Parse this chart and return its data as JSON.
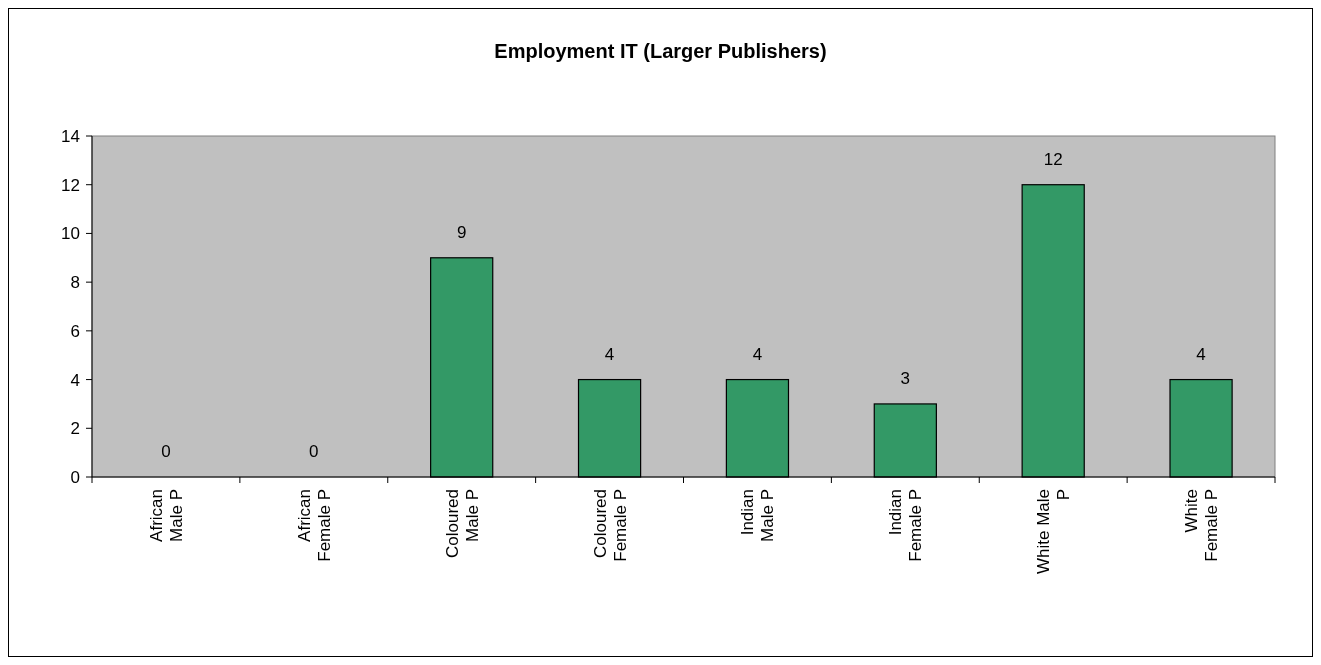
{
  "chart_data": {
    "type": "bar",
    "title": "Employment IT (Larger Publishers)",
    "categories": [
      "African Male P",
      "African Female P",
      "Coloured Male P",
      "Coloured Female P",
      "Indian Male P",
      "Indian Female P",
      "White Male P",
      "White Female P"
    ],
    "values": [
      0,
      0,
      9,
      4,
      4,
      3,
      12,
      4
    ],
    "color": "#339966",
    "ylim": [
      0,
      14
    ],
    "yticks": [
      0,
      2,
      4,
      6,
      8,
      10,
      12,
      14
    ],
    "data_labels": true,
    "grid": false
  }
}
